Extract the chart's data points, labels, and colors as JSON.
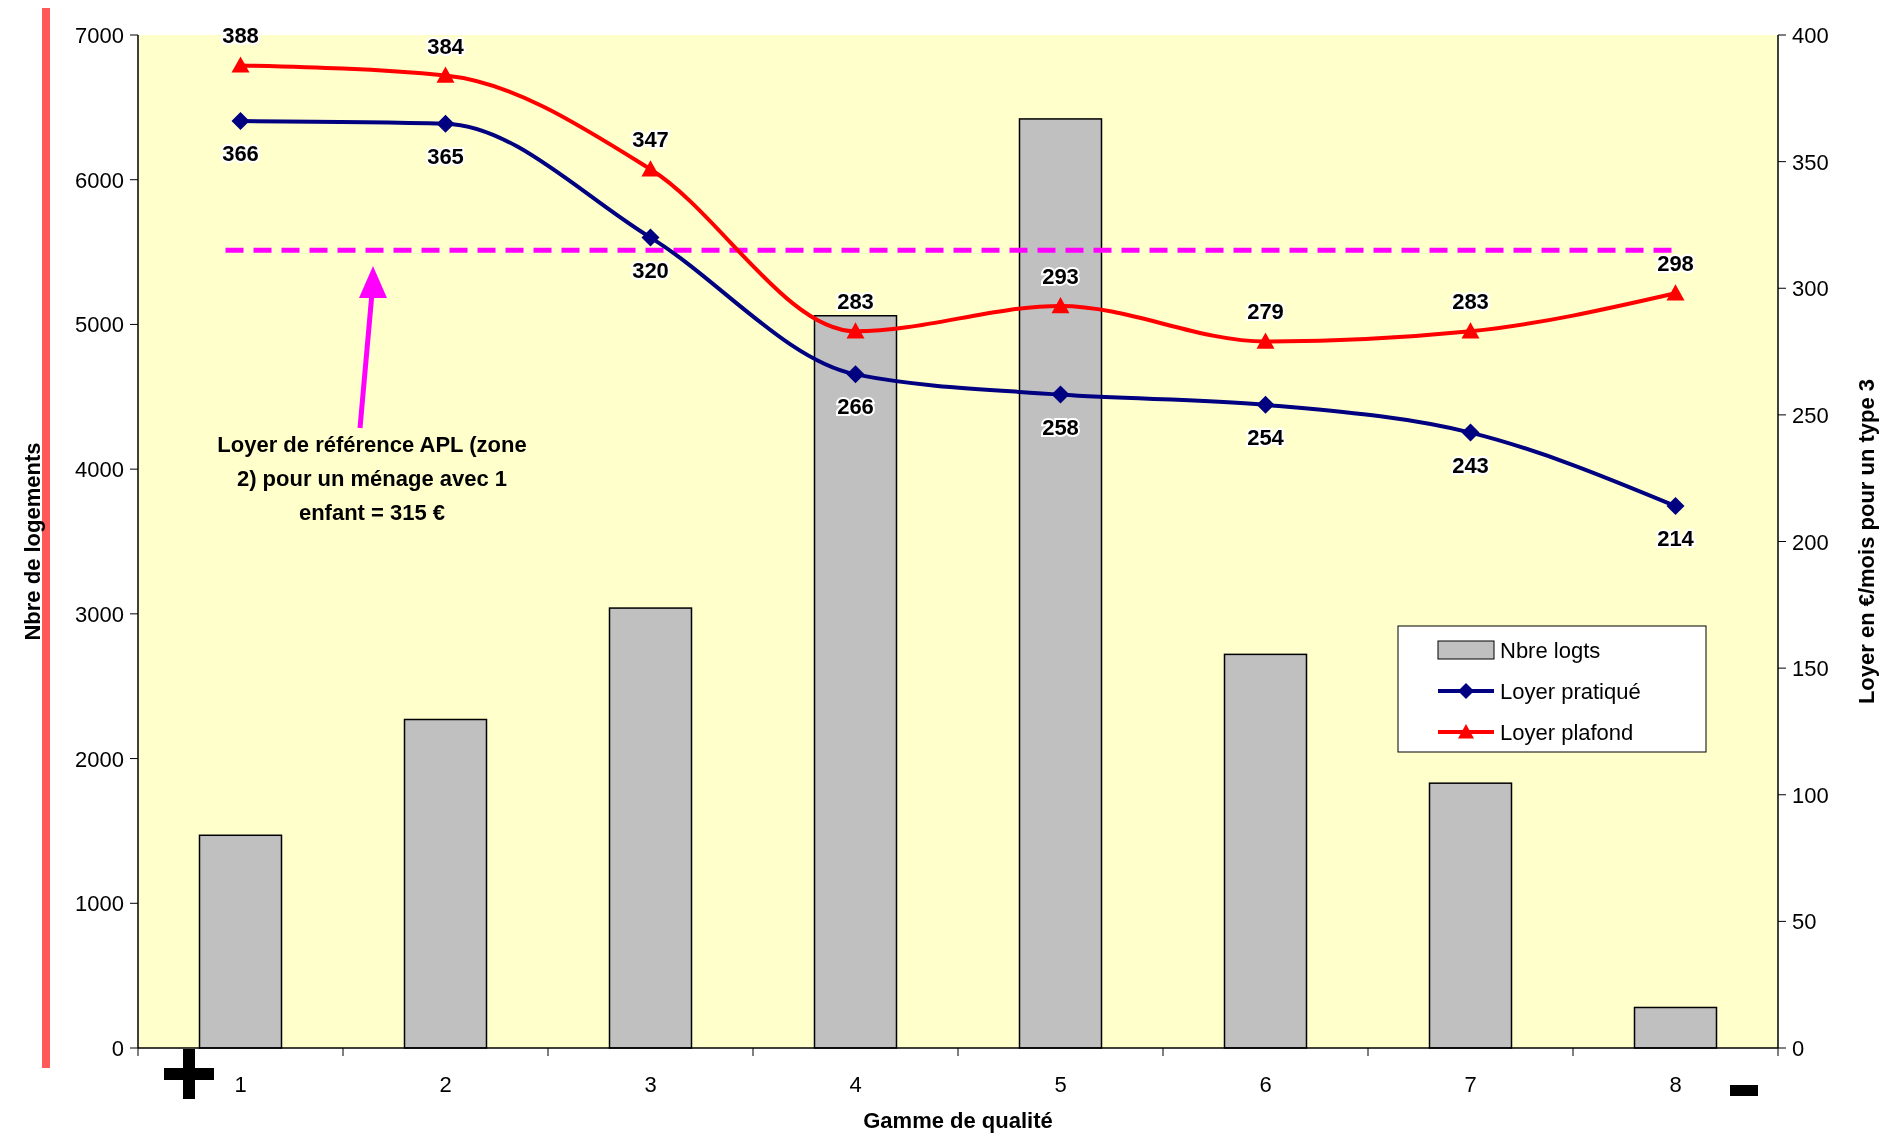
{
  "chart_data": {
    "type": "bar",
    "xlabel": "Gamme de qualité",
    "ylabel": "Nbre de logements",
    "y2label": "Loyer en €/mois pour un type 3",
    "categories": [
      "1",
      "2",
      "3",
      "4",
      "5",
      "6",
      "7",
      "8"
    ],
    "series": [
      {
        "name": "Nbre logts",
        "color": "#c0c0c0",
        "values": [
          1470,
          2270,
          3040,
          5060,
          6420,
          2720,
          1830,
          280
        ]
      },
      {
        "name": "Loyer pratiqué",
        "type": "line",
        "axis": "y2",
        "color": "#000080",
        "marker": "diamond",
        "values": [
          366,
          365,
          320,
          266,
          258,
          254,
          243,
          214
        ],
        "value_labels": [
          "366",
          "365",
          "320",
          "266",
          "258",
          "254",
          "243",
          "214"
        ]
      },
      {
        "name": "Loyer plafond",
        "type": "line",
        "axis": "y2",
        "color": "#ff0000",
        "marker": "triangle",
        "values": [
          388,
          384,
          347,
          283,
          293,
          279,
          283,
          298
        ],
        "value_labels": [
          "388",
          "384",
          "347",
          "283",
          "293",
          "279",
          "283",
          "298"
        ]
      }
    ],
    "annotations": [
      "Loyer de référence APL (zone 2) pour un ménage avec 1 enfant = 315 €"
    ],
    "ylim": [
      0,
      7000
    ],
    "yticks": [
      0,
      1000,
      2000,
      3000,
      4000,
      5000,
      6000,
      7000
    ],
    "y2lim": [
      0,
      400
    ],
    "y2ticks": [
      0,
      50,
      100,
      150,
      200,
      250,
      300,
      350,
      400
    ],
    "ref_lines": [
      {
        "axis": "y2",
        "value": 315,
        "color": "#ff00ff",
        "line_style": "dashed"
      }
    ],
    "grid": false,
    "legend": "right",
    "line_style": "solid"
  }
}
